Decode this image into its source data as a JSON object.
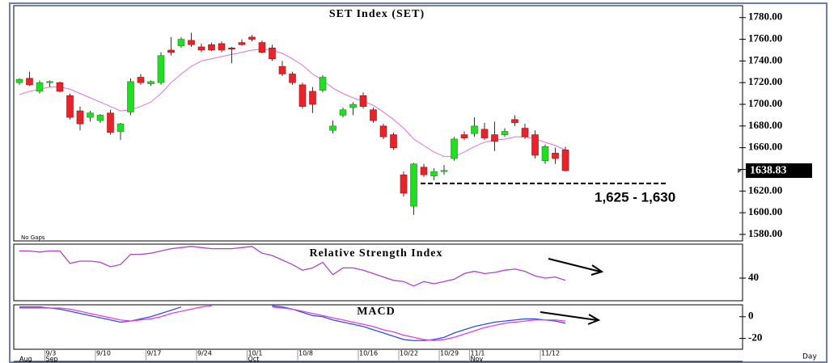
{
  "chart_data": [
    {
      "type": "candlestick",
      "title": "SET Index (SET)",
      "note": "No Gaps",
      "x_label": "Day",
      "categories": [
        null,
        null,
        null,
        "9/3",
        null,
        null,
        null,
        null,
        "9/10",
        null,
        null,
        null,
        null,
        "9/17",
        null,
        null,
        null,
        null,
        "9/24",
        null,
        null,
        null,
        null,
        "10/1",
        null,
        null,
        null,
        null,
        "10/8",
        null,
        null,
        null,
        null,
        null,
        "10/16",
        null,
        null,
        null,
        "10/22",
        null,
        null,
        null,
        "10/29",
        null,
        null,
        "11/1",
        null,
        null,
        null,
        null,
        null,
        null,
        "11/12",
        null,
        null
      ],
      "month_labels": [
        "Aug",
        null,
        null,
        "Sep",
        null,
        null,
        null,
        null,
        null,
        null,
        null,
        null,
        null,
        null,
        null,
        null,
        null,
        null,
        null,
        null,
        null,
        null,
        null,
        "Oct",
        null,
        null,
        null,
        null,
        null,
        null,
        null,
        null,
        null,
        null,
        null,
        null,
        null,
        null,
        null,
        null,
        null,
        null,
        null,
        null,
        null,
        "Nov",
        null,
        null,
        null,
        null,
        null,
        null,
        null,
        null,
        null
      ],
      "open": [
        1720,
        1724,
        1712,
        1720,
        1720,
        1708,
        1694,
        1688,
        1685,
        1692,
        1675,
        1693,
        1725,
        1719,
        1720,
        1750,
        1754,
        1759,
        1753,
        1755,
        1756,
        1752,
        1757,
        1762,
        1757,
        1752,
        1735,
        1728,
        1718,
        1712,
        1713,
        1676,
        1690,
        1697,
        1708,
        1695,
        1680,
        1672,
        1635,
        1606,
        1642,
        1634,
        1638,
        1650,
        1672,
        1673,
        1677,
        1672,
        1672,
        1686,
        1678,
        1672,
        1648,
        1655,
        1658
      ],
      "high": [
        1724,
        1730,
        1722,
        1722,
        1721,
        1710,
        1698,
        1694,
        1691,
        1695,
        1683,
        1724,
        1728,
        1722,
        1748,
        1762,
        1762,
        1766,
        1756,
        1757,
        1758,
        1753,
        1760,
        1764,
        1759,
        1755,
        1740,
        1730,
        1720,
        1716,
        1727,
        1685,
        1697,
        1702,
        1711,
        1697,
        1682,
        1674,
        1638,
        1646,
        1645,
        1641,
        1644,
        1670,
        1675,
        1688,
        1683,
        1684,
        1678,
        1690,
        1682,
        1676,
        1663,
        1660,
        1661
      ],
      "low": [
        1718,
        1717,
        1710,
        1716,
        1711,
        1686,
        1676,
        1684,
        1683,
        1672,
        1667,
        1690,
        1718,
        1717,
        1718,
        1745,
        1752,
        1753,
        1748,
        1749,
        1748,
        1738,
        1754,
        1758,
        1747,
        1740,
        1726,
        1718,
        1696,
        1692,
        1711,
        1673,
        1688,
        1690,
        1696,
        1683,
        1668,
        1658,
        1615,
        1598,
        1633,
        1630,
        1635,
        1648,
        1667,
        1670,
        1667,
        1657,
        1670,
        1680,
        1668,
        1650,
        1645,
        1645,
        1638
      ],
      "close": [
        1723,
        1718,
        1720,
        1721,
        1712,
        1688,
        1682,
        1692,
        1690,
        1674,
        1682,
        1721,
        1720,
        1721,
        1745,
        1748,
        1760,
        1755,
        1750,
        1750,
        1750,
        1751,
        1755,
        1760,
        1748,
        1742,
        1728,
        1720,
        1698,
        1700,
        1725,
        1680,
        1695,
        1700,
        1698,
        1685,
        1670,
        1660,
        1618,
        1645,
        1635,
        1638,
        1639,
        1668,
        1669,
        1680,
        1669,
        1666,
        1675,
        1683,
        1670,
        1653,
        1661,
        1650,
        1638.83
      ],
      "up_color": "#22dd22",
      "down_color": "#e8232a",
      "sma": {
        "color": "#e070e0",
        "values": [
          1709,
          1712,
          1714,
          1716,
          1716,
          1714,
          1710,
          1706,
          1702,
          1698,
          1694,
          1695,
          1698,
          1702,
          1710,
          1720,
          1728,
          1735,
          1740,
          1742,
          1744,
          1746,
          1748,
          1750,
          1751,
          1750,
          1747,
          1742,
          1736,
          1728,
          1722,
          1715,
          1710,
          1706,
          1703,
          1699,
          1693,
          1686,
          1678,
          1668,
          1662,
          1656,
          1652,
          1652,
          1656,
          1661,
          1665,
          1667,
          1668,
          1670,
          1670,
          1668,
          1665,
          1662,
          1658
        ]
      },
      "support": {
        "value": 1627,
        "label": "1,625 - 1,630"
      },
      "ylim": [
        1574,
        1791
      ],
      "yticks": [
        {
          "value": 1580,
          "label": "1580.00"
        },
        {
          "value": 1600,
          "label": "1600.00"
        },
        {
          "value": 1620,
          "label": "1620.00"
        },
        {
          "value": 1640,
          "label": "1640.00"
        },
        {
          "value": 1660,
          "label": "1660.00"
        },
        {
          "value": 1680,
          "label": "1680.00"
        },
        {
          "value": 1700,
          "label": "1700.00"
        },
        {
          "value": 1720,
          "label": "1720.00"
        },
        {
          "value": 1740,
          "label": "1740.00"
        },
        {
          "value": 1760,
          "label": "1760.00"
        },
        {
          "value": 1780,
          "label": "1780.00"
        }
      ]
    },
    {
      "type": "line",
      "title": "Relative Strength Index",
      "series": [
        {
          "color": "#b040d0",
          "values": [
            64,
            64,
            63,
            64,
            64,
            53,
            55,
            55,
            54,
            50,
            52,
            61,
            61,
            62,
            64,
            66,
            67,
            68,
            67,
            66,
            66,
            66,
            67,
            68,
            62,
            60,
            56,
            52,
            47,
            49,
            54,
            43,
            49,
            49,
            47,
            44,
            41,
            38,
            37,
            33,
            37,
            35,
            37,
            39,
            44,
            46,
            44,
            45,
            47,
            48,
            46,
            42,
            40,
            41,
            38
          ]
        }
      ],
      "ylim": [
        20,
        70
      ],
      "yticks": [
        40
      ]
    },
    {
      "type": "line",
      "title": "MACD",
      "series": [
        {
          "color": "#3050e0",
          "values": [
            9,
            9,
            9,
            8,
            7,
            5,
            3,
            1,
            -1,
            -3,
            -5,
            -4,
            -2,
            0,
            3,
            6,
            9,
            null,
            null,
            null,
            null,
            null,
            null,
            null,
            null,
            10,
            9,
            7,
            4,
            1,
            0,
            -3,
            -5,
            -7,
            -9,
            -12,
            -15,
            -18,
            -21,
            -22,
            -22,
            -21,
            -19,
            -15,
            -12,
            -9,
            -7,
            -5,
            -4,
            -3,
            -2,
            -2,
            -3,
            -4,
            -6
          ]
        },
        {
          "color": "#e040e0",
          "values": [
            8,
            8,
            8,
            8,
            8,
            7,
            5,
            3,
            1,
            -1,
            -3,
            -4,
            -3,
            -2,
            0,
            3,
            5,
            7,
            9,
            10,
            null,
            null,
            null,
            null,
            null,
            9,
            8,
            7,
            5,
            3,
            1,
            -1,
            -3,
            -5,
            -7,
            -9,
            -12,
            -14,
            -17,
            -19,
            -21,
            -22,
            -21,
            -19,
            -16,
            -13,
            -10,
            -8,
            -6,
            -5,
            -4,
            -3,
            -3,
            -3,
            -4
          ]
        }
      ],
      "ylim": [
        -30,
        11
      ],
      "yticks": [
        0,
        -20
      ]
    }
  ]
}
